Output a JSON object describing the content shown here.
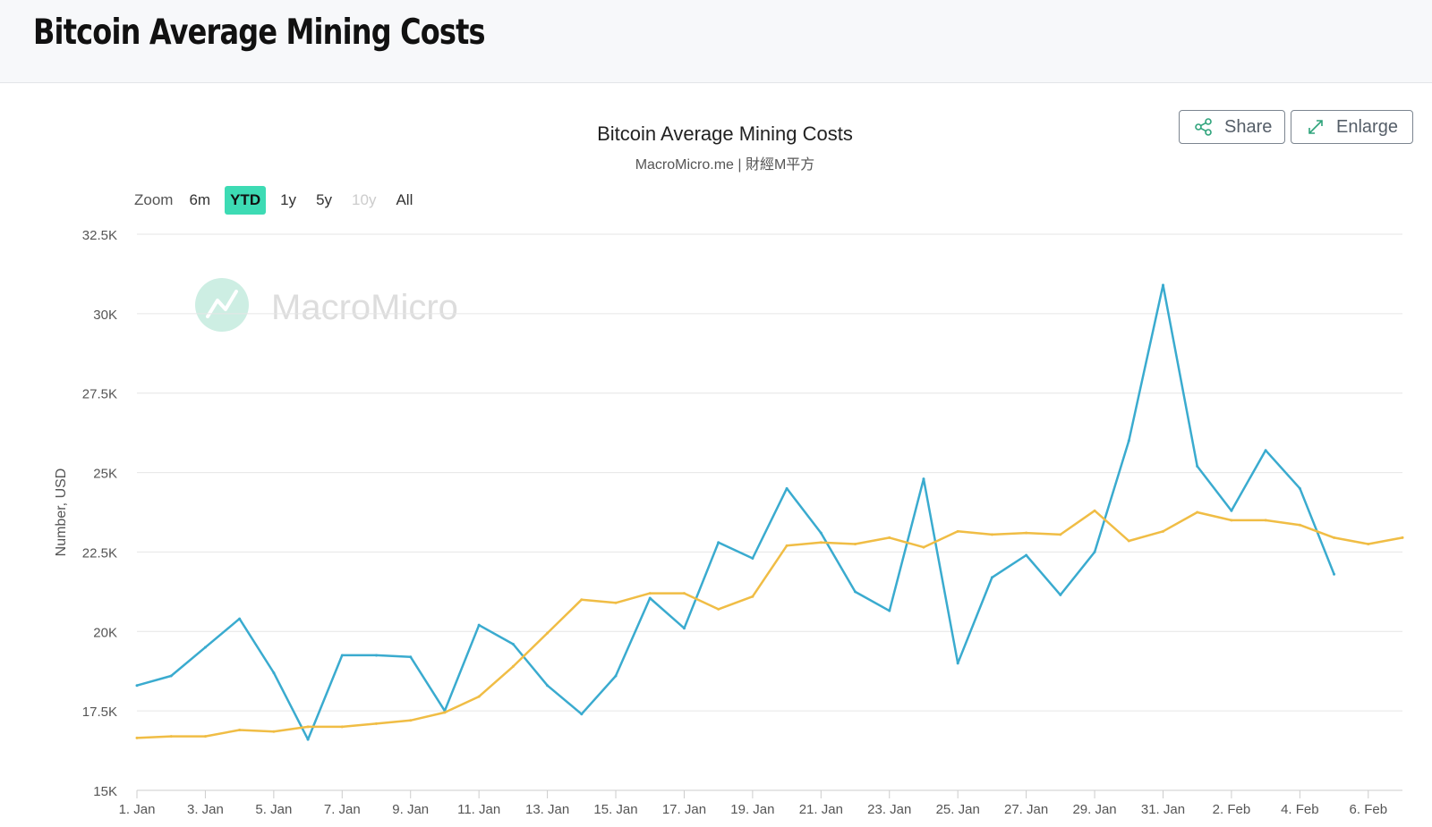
{
  "page": {
    "title": "Bitcoin Average Mining Costs"
  },
  "toolbar": {
    "share_label": "Share",
    "enlarge_label": "Enlarge",
    "zoom_label": "Zoom",
    "zoom_options": [
      "6m",
      "YTD",
      "1y",
      "5y",
      "10y",
      "All"
    ],
    "zoom_selected": "YTD",
    "zoom_disabled": [
      "10y"
    ]
  },
  "watermark": {
    "text": "MacroMicro"
  },
  "colors": {
    "series_blue": "#3aabcf",
    "series_orange": "#f0bd45",
    "accent": "#3ddbb4",
    "gridline": "#e6e6e6",
    "icon_green": "#2ea37b"
  },
  "chart_data": {
    "type": "line",
    "title": "Bitcoin Average Mining Costs",
    "subtitle": "MacroMicro.me | 財經M平方",
    "ylabel": "Number, USD",
    "xlabel": "",
    "ylim": [
      15000,
      32500
    ],
    "y_ticks": [
      15000,
      17500,
      20000,
      22500,
      25000,
      27500,
      30000,
      32500
    ],
    "y_tick_labels": [
      "15K",
      "17.5K",
      "20K",
      "22.5K",
      "25K",
      "27.5K",
      "30K",
      "32.5K"
    ],
    "x_ticks": [
      "1. Jan",
      "3. Jan",
      "5. Jan",
      "7. Jan",
      "9. Jan",
      "11. Jan",
      "13. Jan",
      "15. Jan",
      "17. Jan",
      "19. Jan",
      "21. Jan",
      "23. Jan",
      "25. Jan",
      "27. Jan",
      "29. Jan",
      "31. Jan",
      "2. Feb",
      "4. Feb",
      "6. Feb"
    ],
    "x_start": "1. Jan",
    "x_end": "7. Feb",
    "grid": true,
    "legend": "none",
    "series": [
      {
        "color": "#3aabcf",
        "x": [
          "1. Jan",
          "2. Jan",
          "3. Jan",
          "4. Jan",
          "5. Jan",
          "6. Jan",
          "7. Jan",
          "8. Jan",
          "9. Jan",
          "10. Jan",
          "11. Jan",
          "12. Jan",
          "13. Jan",
          "14. Jan",
          "15. Jan",
          "16. Jan",
          "17. Jan",
          "18. Jan",
          "19. Jan",
          "20. Jan",
          "21. Jan",
          "22. Jan",
          "23. Jan",
          "24. Jan",
          "25. Jan",
          "26. Jan",
          "27. Jan",
          "28. Jan",
          "29. Jan",
          "30. Jan",
          "31. Jan",
          "1. Feb",
          "2. Feb",
          "3. Feb",
          "4. Feb",
          "5. Feb"
        ],
        "values": [
          18300,
          18600,
          19500,
          20400,
          18700,
          16600,
          19250,
          19250,
          19200,
          17500,
          20200,
          19600,
          18300,
          17400,
          18600,
          21050,
          20100,
          22800,
          22300,
          24500,
          23100,
          21250,
          20650,
          24800,
          19000,
          21700,
          22400,
          21150,
          22500,
          26000,
          30900,
          25200,
          23800,
          25700,
          24500,
          21800
        ]
      },
      {
        "color": "#f0bd45",
        "x": [
          "1. Jan",
          "2. Jan",
          "3. Jan",
          "4. Jan",
          "5. Jan",
          "6. Jan",
          "7. Jan",
          "8. Jan",
          "9. Jan",
          "10. Jan",
          "11. Jan",
          "12. Jan",
          "13. Jan",
          "14. Jan",
          "15. Jan",
          "16. Jan",
          "17. Jan",
          "18. Jan",
          "19. Jan",
          "20. Jan",
          "21. Jan",
          "22. Jan",
          "23. Jan",
          "24. Jan",
          "25. Jan",
          "26. Jan",
          "27. Jan",
          "28. Jan",
          "29. Jan",
          "30. Jan",
          "31. Jan",
          "1. Feb",
          "2. Feb",
          "3. Feb",
          "4. Feb",
          "5. Feb",
          "6. Feb",
          "7. Feb"
        ],
        "values": [
          16650,
          16700,
          16700,
          16900,
          16850,
          17000,
          17000,
          17100,
          17200,
          17450,
          17950,
          18900,
          19950,
          21000,
          20900,
          21200,
          21200,
          20700,
          21100,
          22700,
          22800,
          22750,
          22950,
          22650,
          23150,
          23050,
          23100,
          23050,
          23800,
          22850,
          23150,
          23750,
          23500,
          23500,
          23350,
          22950,
          22750,
          22950
        ]
      }
    ]
  }
}
